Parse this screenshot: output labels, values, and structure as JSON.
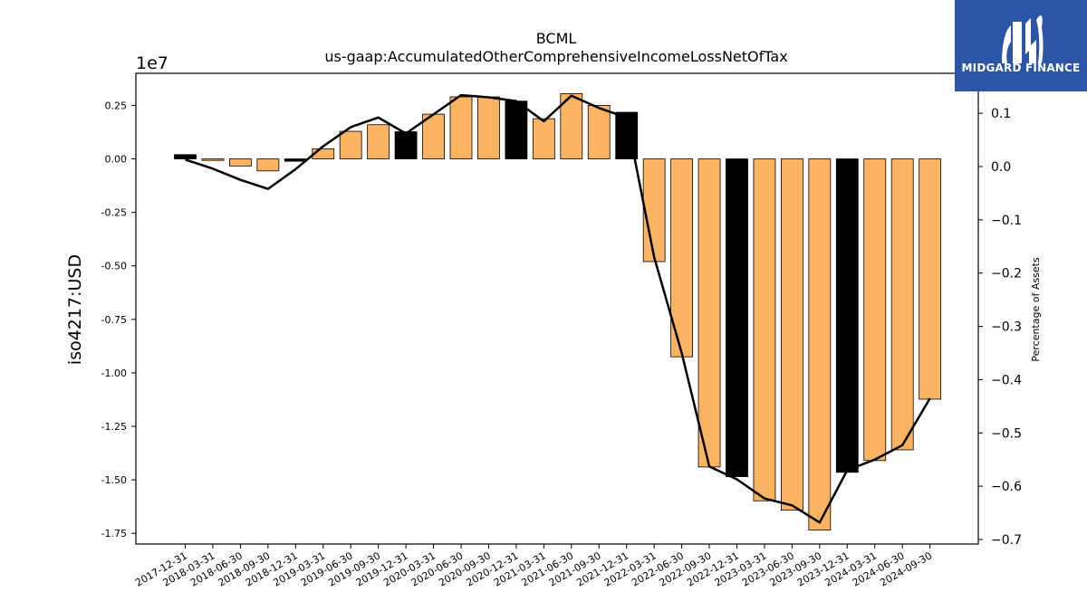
{
  "chart_data": {
    "type": "bar",
    "title": "BCML",
    "subtitle": "us-gaap:AccumulatedOtherComprehensiveIncomeLossNetOfTax",
    "ylabel": "iso4217:USD",
    "y2label": "Percentage of Assets",
    "y_offset_label": "1e7",
    "ylim": [
      -18000000.0,
      4000000.0
    ],
    "y2lim": [
      -0.7085,
      0.175
    ],
    "yticks": [
      "0.25",
      "0.00",
      "-0.25",
      "-0.50",
      "-0.75",
      "-1.00",
      "-1.25",
      "-1.50",
      "-1.75"
    ],
    "ytick_values": [
      2500000.0,
      0,
      -2500000.0,
      -5000000.0,
      -7500000.0,
      -10000000.0,
      -12500000.0,
      -15000000.0,
      -17500000.0
    ],
    "y2ticks": [
      "0.1",
      "0.0",
      "−0.1",
      "−0.2",
      "−0.3",
      "−0.4",
      "−0.5",
      "−0.6",
      "−0.7"
    ],
    "y2tick_values": [
      0.1,
      0.0,
      -0.1,
      -0.2,
      -0.3,
      -0.4,
      -0.5,
      -0.6,
      -0.7
    ],
    "categories": [
      "2017-12-31",
      "2018-03-31",
      "2018-06-30",
      "2018-09-30",
      "2018-12-31",
      "2019-03-31",
      "2019-06-30",
      "2019-09-30",
      "2019-12-31",
      "2020-03-31",
      "2020-06-30",
      "2020-09-30",
      "2020-12-31",
      "2021-03-31",
      "2021-06-30",
      "2021-09-30",
      "2021-12-31",
      "2022-03-31",
      "2022-06-30",
      "2022-09-30",
      "2022-12-31",
      "2023-03-31",
      "2023-06-30",
      "2023-09-30",
      "2023-12-31",
      "2024-03-31",
      "2024-06-30",
      "2024-09-30"
    ],
    "series": [
      {
        "values": [
          200000,
          -70000,
          -330000,
          -560000,
          -110000,
          470000,
          1290000,
          1600000,
          1270000,
          2090000,
          2900000,
          2900000,
          2700000,
          1880000,
          3050000,
          2500000,
          2180000,
          -4800000,
          -9250000,
          -14400000,
          -14850000,
          -15980000,
          -16420000,
          -17350000,
          -14650000,
          -14100000,
          -13600000,
          -11230000
        ],
        "colors": [
          "#000000",
          "#fdb462",
          "#fdb462",
          "#fdb462",
          "#000000",
          "#fdb462",
          "#fdb462",
          "#fdb462",
          "#000000",
          "#fdb462",
          "#fdb462",
          "#fdb462",
          "#000000",
          "#fdb462",
          "#fdb462",
          "#fdb462",
          "#000000",
          "#fdb462",
          "#fdb462",
          "#fdb462",
          "#000000",
          "#fdb462",
          "#fdb462",
          "#fdb462",
          "#000000",
          "#fdb462",
          "#fdb462",
          "#fdb462"
        ]
      },
      {
        "axis": "right",
        "type": "line",
        "values": [
          0.013,
          -0.004,
          -0.025,
          -0.042,
          -0.005,
          0.038,
          0.074,
          0.092,
          0.062,
          0.098,
          0.134,
          0.13,
          0.123,
          0.085,
          0.133,
          0.11,
          0.092,
          -0.17,
          -0.35,
          -0.563,
          -0.587,
          -0.623,
          -0.636,
          -0.668,
          -0.57,
          -0.55,
          -0.523,
          -0.435
        ],
        "color": "#000000"
      }
    ],
    "bar_colors": {
      "highlight": "#000000",
      "default": "#fdb462"
    },
    "grid": false,
    "legend": "none"
  },
  "logo": {
    "text": "MIDGARD FINANCE",
    "icon": "midgard-logo-icon",
    "background": "#2b56a8"
  }
}
